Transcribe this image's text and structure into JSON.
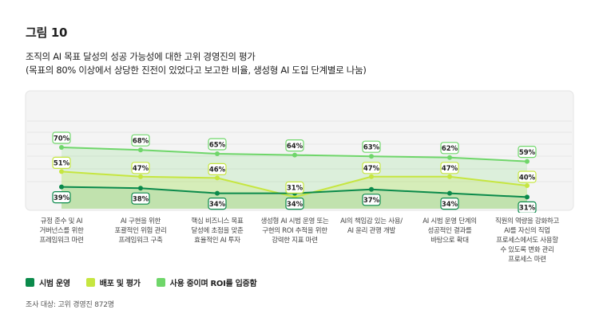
{
  "figure_label": "그림 10",
  "title_line1": "조직의 AI 목표 달성의 성공 가능성에 대한 고위 경영진의 평가",
  "title_line2": "(목표의 80% 이상에서 상당한 진전이 있었다고 보고한 비율, 생성형 AI 도입 단계별로 나눔)",
  "footnote": "조사 대상: 고위 경영진 872명",
  "colors": {
    "pilot": "#0b8a4b",
    "deploy": "#c6e640",
    "roi": "#6fd66a",
    "panel": "#f4f4f4"
  },
  "chart_data": {
    "type": "line",
    "categories": [
      "규정 준수 및 AI 거버넌스를 위한 프레임워크 마련",
      "AI 구현을 위한 포괄적인 위험 관리 프레임워크 구축",
      "핵심 비즈니스 목표 달성에 초점을 맞춘 효율적인 AI 투자",
      "생성형 AI 시범 운영 또는 구현의 ROI 추적을 위한 강력한 지표 마련",
      "AI의 책임감 있는 사용/AI 윤리 관행 개발",
      "AI 시범 운영 단계의 성공적인 결과를 바탕으로 확대",
      "직원의 역량을 강화하고 AI를 자신의 직업 프로세스에서도 사용할 수 있도록 변화 관리 프로세스 마련"
    ],
    "category_lines": [
      [
        "규정 준수 및 AI",
        "거버넌스를 위한",
        "프레임워크 마련"
      ],
      [
        "AI 구현을 위한",
        "포괄적인 위험 관리",
        "프레임워크 구축"
      ],
      [
        "핵심 비즈니스 목표",
        "달성에 초점을 맞춘",
        "효율적인 AI 투자"
      ],
      [
        "생성형 AI 시범 운영 또는",
        "구현의 ROI 추적을 위한",
        "강력한 지표 마련"
      ],
      [
        "AI의 책임감 있는 사용/",
        "AI 윤리 관행 개발"
      ],
      [
        "AI 시범 운영 단계의",
        "성공적인 결과를",
        "바탕으로 확대"
      ],
      [
        "직원의 역량을 강화하고",
        "AI를 자신의 직업",
        "프로세스에서도 사용할",
        "수 있도록 변화 관리",
        "프로세스 마련"
      ]
    ],
    "series": [
      {
        "name": "시범 운영",
        "values": [
          39,
          38,
          34,
          34,
          37,
          34,
          31
        ],
        "labels": [
          "39%",
          "38%",
          "34%",
          "34%",
          "37%",
          "34%",
          "31%"
        ]
      },
      {
        "name": "배포 및 평가",
        "values": [
          51,
          47,
          46,
          31,
          47,
          47,
          40
        ],
        "labels": [
          "51%",
          "47%",
          "46%",
          "31%",
          "47%",
          "47%",
          "40%"
        ]
      },
      {
        "name": "사용 중이며 ROI를 입증함",
        "values": [
          70,
          68,
          65,
          64,
          63,
          62,
          59
        ],
        "labels": [
          "70%",
          "68%",
          "65%",
          "64%",
          "63%",
          "62%",
          "59%"
        ]
      }
    ],
    "ylim": [
      0,
      100
    ],
    "grid": true,
    "legend_position": "bottom-left"
  }
}
